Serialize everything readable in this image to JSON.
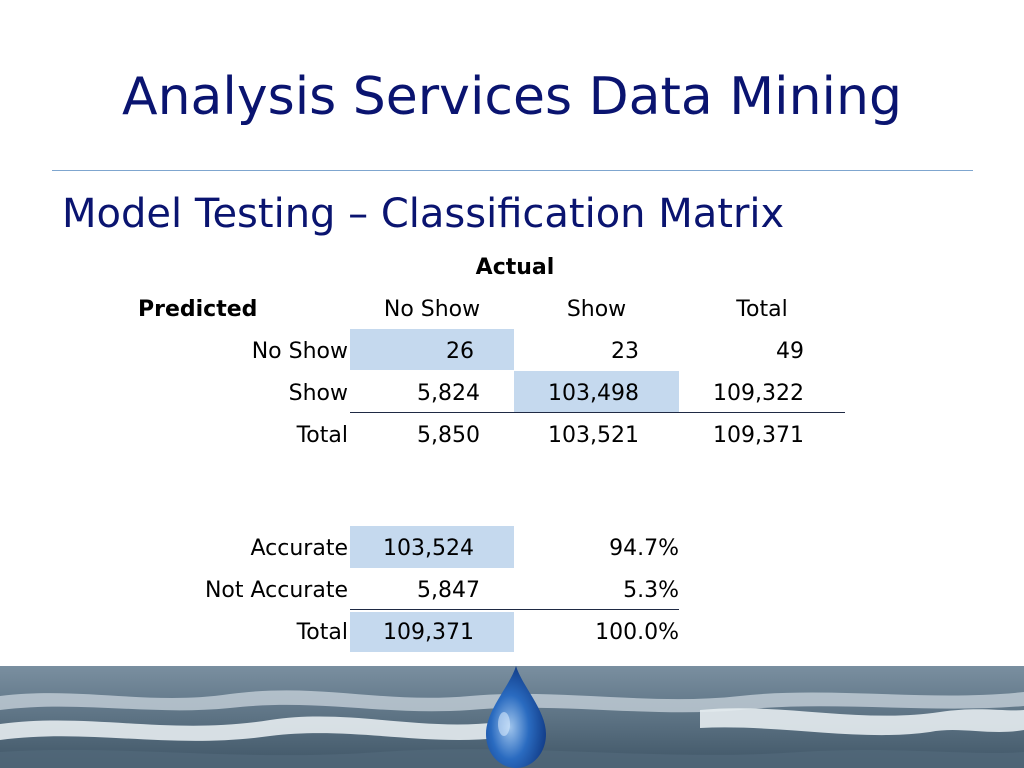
{
  "slide": {
    "title": "Analysis Services Data Mining",
    "subtitle": "Model Testing – Classification Matrix"
  },
  "matrix": {
    "actual_label": "Actual",
    "predicted_label": "Predicted",
    "col_headers": [
      "No Show",
      "Show",
      "Total"
    ],
    "rows": [
      {
        "label": "No Show",
        "values": [
          "26",
          "23",
          "49"
        ]
      },
      {
        "label": "Show",
        "values": [
          "5,824",
          "103,498",
          "109,322"
        ]
      },
      {
        "label": "Total",
        "values": [
          "5,850",
          "103,521",
          "109,371"
        ]
      }
    ]
  },
  "accuracy": {
    "rows": [
      {
        "label": "Accurate",
        "count": "103,524",
        "pct": "94.7%"
      },
      {
        "label": "Not Accurate",
        "count": "5,847",
        "pct": "5.3%"
      },
      {
        "label": "Total",
        "count": "109,371",
        "pct": "100.0%"
      }
    ]
  },
  "colors": {
    "title": "#0a1470",
    "highlight": "#c5d9ee",
    "rule": "#7fa6cf"
  },
  "footer": {
    "icon": "water-drop-icon"
  }
}
